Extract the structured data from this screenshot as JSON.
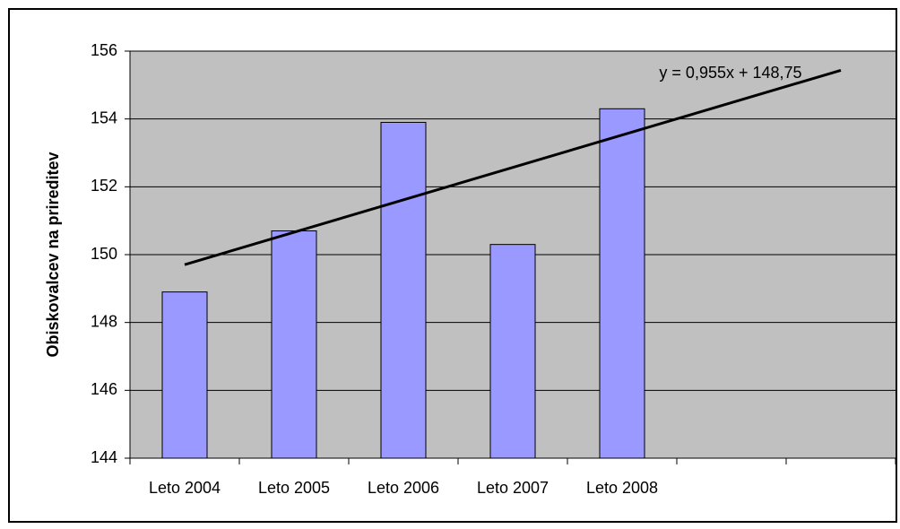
{
  "chart_data": {
    "type": "bar",
    "y_label": "Obiskovalcev na prireditev",
    "categories": [
      "Leto 2004",
      "Leto 2005",
      "Leto 2006",
      "Leto 2007",
      "Leto 2008",
      null,
      null
    ],
    "values": [
      148.9,
      150.7,
      153.9,
      150.3,
      154.3,
      null,
      null
    ],
    "color": "#9999ff",
    "ylim": [
      144,
      156
    ],
    "yticks": [
      144,
      146,
      148,
      150,
      152,
      154,
      156
    ],
    "grid": true,
    "trendline": {
      "label": "y = 0,955x + 148,75",
      "slope": 0.955,
      "intercept": 148.75,
      "color": "#000000"
    }
  }
}
